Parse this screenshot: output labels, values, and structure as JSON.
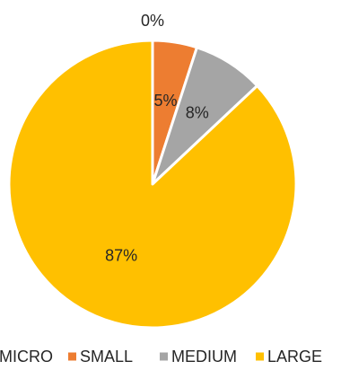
{
  "chart_data": {
    "type": "pie",
    "categories": [
      "MICRO",
      "SMALL",
      "MEDIUM",
      "LARGE"
    ],
    "values": [
      0,
      5,
      8,
      87
    ],
    "labels": [
      "0%",
      "5%",
      "8%",
      "87%"
    ],
    "colors": [
      "#4472C4",
      "#ED7D31",
      "#A5A5A5",
      "#FFC000"
    ],
    "start_angle": 0,
    "direction": "clockwise",
    "legend_position": "bottom",
    "title": ""
  }
}
